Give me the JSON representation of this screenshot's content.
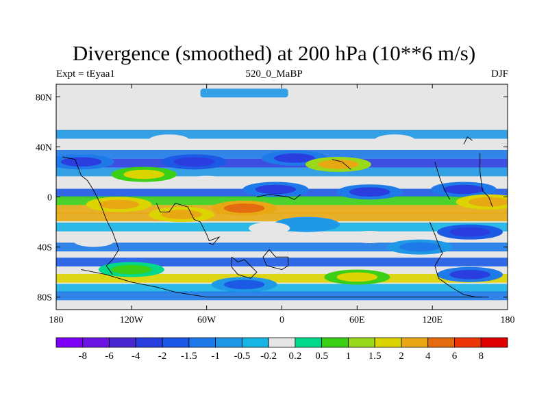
{
  "title": "Divergence (smoothed) at 200 hPa (10**6 m/s)",
  "subtitle_left": "Expt = tEyaa1",
  "subtitle_center": "520_0_MaBP",
  "subtitle_right": "DJF",
  "chart_data": {
    "type": "heatmap",
    "title": "Divergence (smoothed) at 200 hPa (10**6 m/s)",
    "xlabel": "",
    "ylabel": "",
    "xlim": [
      -180,
      180
    ],
    "ylim": [
      -90,
      90
    ],
    "x_ticks": [
      {
        "value": -180,
        "label": "180"
      },
      {
        "value": -120,
        "label": "120W"
      },
      {
        "value": -60,
        "label": "60W"
      },
      {
        "value": 0,
        "label": "0"
      },
      {
        "value": 60,
        "label": "60E"
      },
      {
        "value": 120,
        "label": "120E"
      },
      {
        "value": 180,
        "label": "180"
      }
    ],
    "y_ticks": [
      {
        "value": 80,
        "label": "80N"
      },
      {
        "value": 40,
        "label": "40N"
      },
      {
        "value": 0,
        "label": "0"
      },
      {
        "value": -40,
        "label": "40S"
      },
      {
        "value": -80,
        "label": "80S"
      }
    ],
    "colorbar": {
      "colors": [
        "#7d00f8",
        "#6a14e6",
        "#4a28d0",
        "#2a3ee0",
        "#1c5ae6",
        "#1e7ae8",
        "#1f98e6",
        "#18b4e4",
        "#e6e6e6",
        "#00d98a",
        "#3ccf18",
        "#9ad81a",
        "#dcd400",
        "#e8a814",
        "#e46c10",
        "#ec3608",
        "#e00000"
      ],
      "labels": [
        "-8",
        "-6",
        "-4",
        "-2",
        "-1.5",
        "-1",
        "-0.5",
        "-0.2",
        "0.2",
        "0.5",
        "1",
        "1.5",
        "2",
        "4",
        "6",
        "8"
      ]
    },
    "bands": [
      {
        "lat": 83,
        "value": -0.8,
        "lon_from": -65,
        "lon_to": 5
      },
      {
        "lat": 50,
        "value": -0.6
      },
      {
        "lat": 34,
        "value": -1.2
      },
      {
        "lat": 27,
        "value": -2.5
      },
      {
        "lat": 20,
        "value": -0.8
      },
      {
        "lat": 11,
        "value": -0.2
      },
      {
        "lat": 3,
        "value": -2.0
      },
      {
        "lat": -3,
        "value": 0.8
      },
      {
        "lat": -10,
        "value": 3.0
      },
      {
        "lat": -16,
        "value": 2.0
      },
      {
        "lat": -24,
        "value": -0.4
      },
      {
        "lat": -40,
        "value": -1.5
      },
      {
        "lat": -52,
        "value": -1.8
      },
      {
        "lat": -65,
        "value": 1.5
      },
      {
        "lat": -73,
        "value": -0.5
      },
      {
        "lat": -79,
        "value": -1.2
      }
    ],
    "features": [
      {
        "lon": -70,
        "lat": 28,
        "value": -3.0
      },
      {
        "lon": -160,
        "lat": 28,
        "value": -2.5
      },
      {
        "lon": 10,
        "lat": 31,
        "value": -2.2
      },
      {
        "lon": 45,
        "lat": 26,
        "value": 2.2
      },
      {
        "lon": -110,
        "lat": 18,
        "value": 1.5
      },
      {
        "lon": 70,
        "lat": 4,
        "value": -2.2
      },
      {
        "lon": -5,
        "lat": 6,
        "value": -2.5
      },
      {
        "lon": 145,
        "lat": 6,
        "value": -2.5
      },
      {
        "lon": -30,
        "lat": -9,
        "value": 5.0
      },
      {
        "lon": -130,
        "lat": -6,
        "value": 3.5
      },
      {
        "lon": -80,
        "lat": -14,
        "value": 3.0
      },
      {
        "lon": 165,
        "lat": -4,
        "value": 3.5
      },
      {
        "lon": 150,
        "lat": -28,
        "value": -3.0
      },
      {
        "lon": 110,
        "lat": -40,
        "value": -1.5
      },
      {
        "lon": 20,
        "lat": -22,
        "value": -1.0
      },
      {
        "lon": -120,
        "lat": -58,
        "value": 0.8
      },
      {
        "lon": 60,
        "lat": -64,
        "value": 1.5
      },
      {
        "lon": -30,
        "lat": -70,
        "value": -1.8
      },
      {
        "lon": 150,
        "lat": -62,
        "value": -2.2
      }
    ],
    "gaps": [
      {
        "lon": -150,
        "lat": -35
      },
      {
        "lon": -10,
        "lat": -25
      },
      {
        "lon": 70,
        "lat": -32
      },
      {
        "lon": -60,
        "lat": 12
      },
      {
        "lon": -90,
        "lat": 45
      },
      {
        "lon": 90,
        "lat": 45
      }
    ],
    "coastline_segments": [
      [
        [
          -175,
          32
        ],
        [
          -165,
          30
        ],
        [
          -160,
          17
        ],
        [
          -155,
          13
        ],
        [
          -150,
          5
        ],
        [
          -145,
          -5
        ],
        [
          -140,
          -18
        ],
        [
          -135,
          -28
        ],
        [
          -130,
          -42
        ],
        [
          -135,
          -50
        ],
        [
          -140,
          -55
        ],
        [
          -135,
          -62
        ]
      ],
      [
        [
          -100,
          -5
        ],
        [
          -97,
          -12
        ],
        [
          -90,
          -12
        ],
        [
          -85,
          -5
        ],
        [
          -75,
          -8
        ],
        [
          -70,
          -18
        ],
        [
          -65,
          -20
        ],
        [
          -60,
          -30
        ],
        [
          -58,
          -35
        ],
        [
          -50,
          -32
        ],
        [
          -55,
          -38
        ],
        [
          -58,
          -37
        ]
      ],
      [
        [
          -40,
          -48
        ],
        [
          -35,
          -52
        ],
        [
          -30,
          -50
        ],
        [
          -25,
          -55
        ],
        [
          -20,
          -60
        ],
        [
          -25,
          -65
        ],
        [
          -35,
          -62
        ],
        [
          -40,
          -56
        ],
        [
          -40,
          -48
        ]
      ],
      [
        [
          -10,
          -42
        ],
        [
          -5,
          -48
        ],
        [
          5,
          -48
        ],
        [
          5,
          -55
        ],
        [
          0,
          -58
        ],
        [
          -12,
          -55
        ],
        [
          -15,
          -48
        ],
        [
          -10,
          -42
        ]
      ],
      [
        [
          -20,
          0
        ],
        [
          -10,
          2
        ],
        [
          5,
          0
        ],
        [
          10,
          -2
        ],
        [
          15,
          2
        ]
      ],
      [
        [
          40,
          30
        ],
        [
          48,
          28
        ],
        [
          55,
          22
        ]
      ],
      [
        [
          122,
          28
        ],
        [
          126,
          15
        ],
        [
          130,
          5
        ],
        [
          134,
          -2
        ]
      ],
      [
        [
          158,
          35
        ],
        [
          158,
          20
        ],
        [
          160,
          5
        ],
        [
          165,
          0
        ],
        [
          168,
          -8
        ]
      ],
      [
        [
          118,
          -20
        ],
        [
          122,
          -30
        ],
        [
          125,
          -38
        ],
        [
          128,
          -45
        ],
        [
          122,
          -55
        ],
        [
          125,
          -65
        ],
        [
          135,
          -72
        ],
        [
          145,
          -78
        ],
        [
          155,
          -80
        ],
        [
          165,
          -80
        ]
      ],
      [
        [
          -160,
          -58
        ],
        [
          -150,
          -60
        ],
        [
          -140,
          -62
        ],
        [
          -130,
          -65
        ],
        [
          -120,
          -68
        ],
        [
          -100,
          -72
        ],
        [
          -85,
          -76
        ],
        [
          -60,
          -80
        ],
        [
          -30,
          -80
        ],
        [
          0,
          -80
        ],
        [
          40,
          -80
        ],
        [
          80,
          -80
        ],
        [
          120,
          -80
        ],
        [
          160,
          -80
        ]
      ],
      [
        [
          145,
          42
        ],
        [
          148,
          48
        ],
        [
          152,
          45
        ]
      ]
    ]
  }
}
